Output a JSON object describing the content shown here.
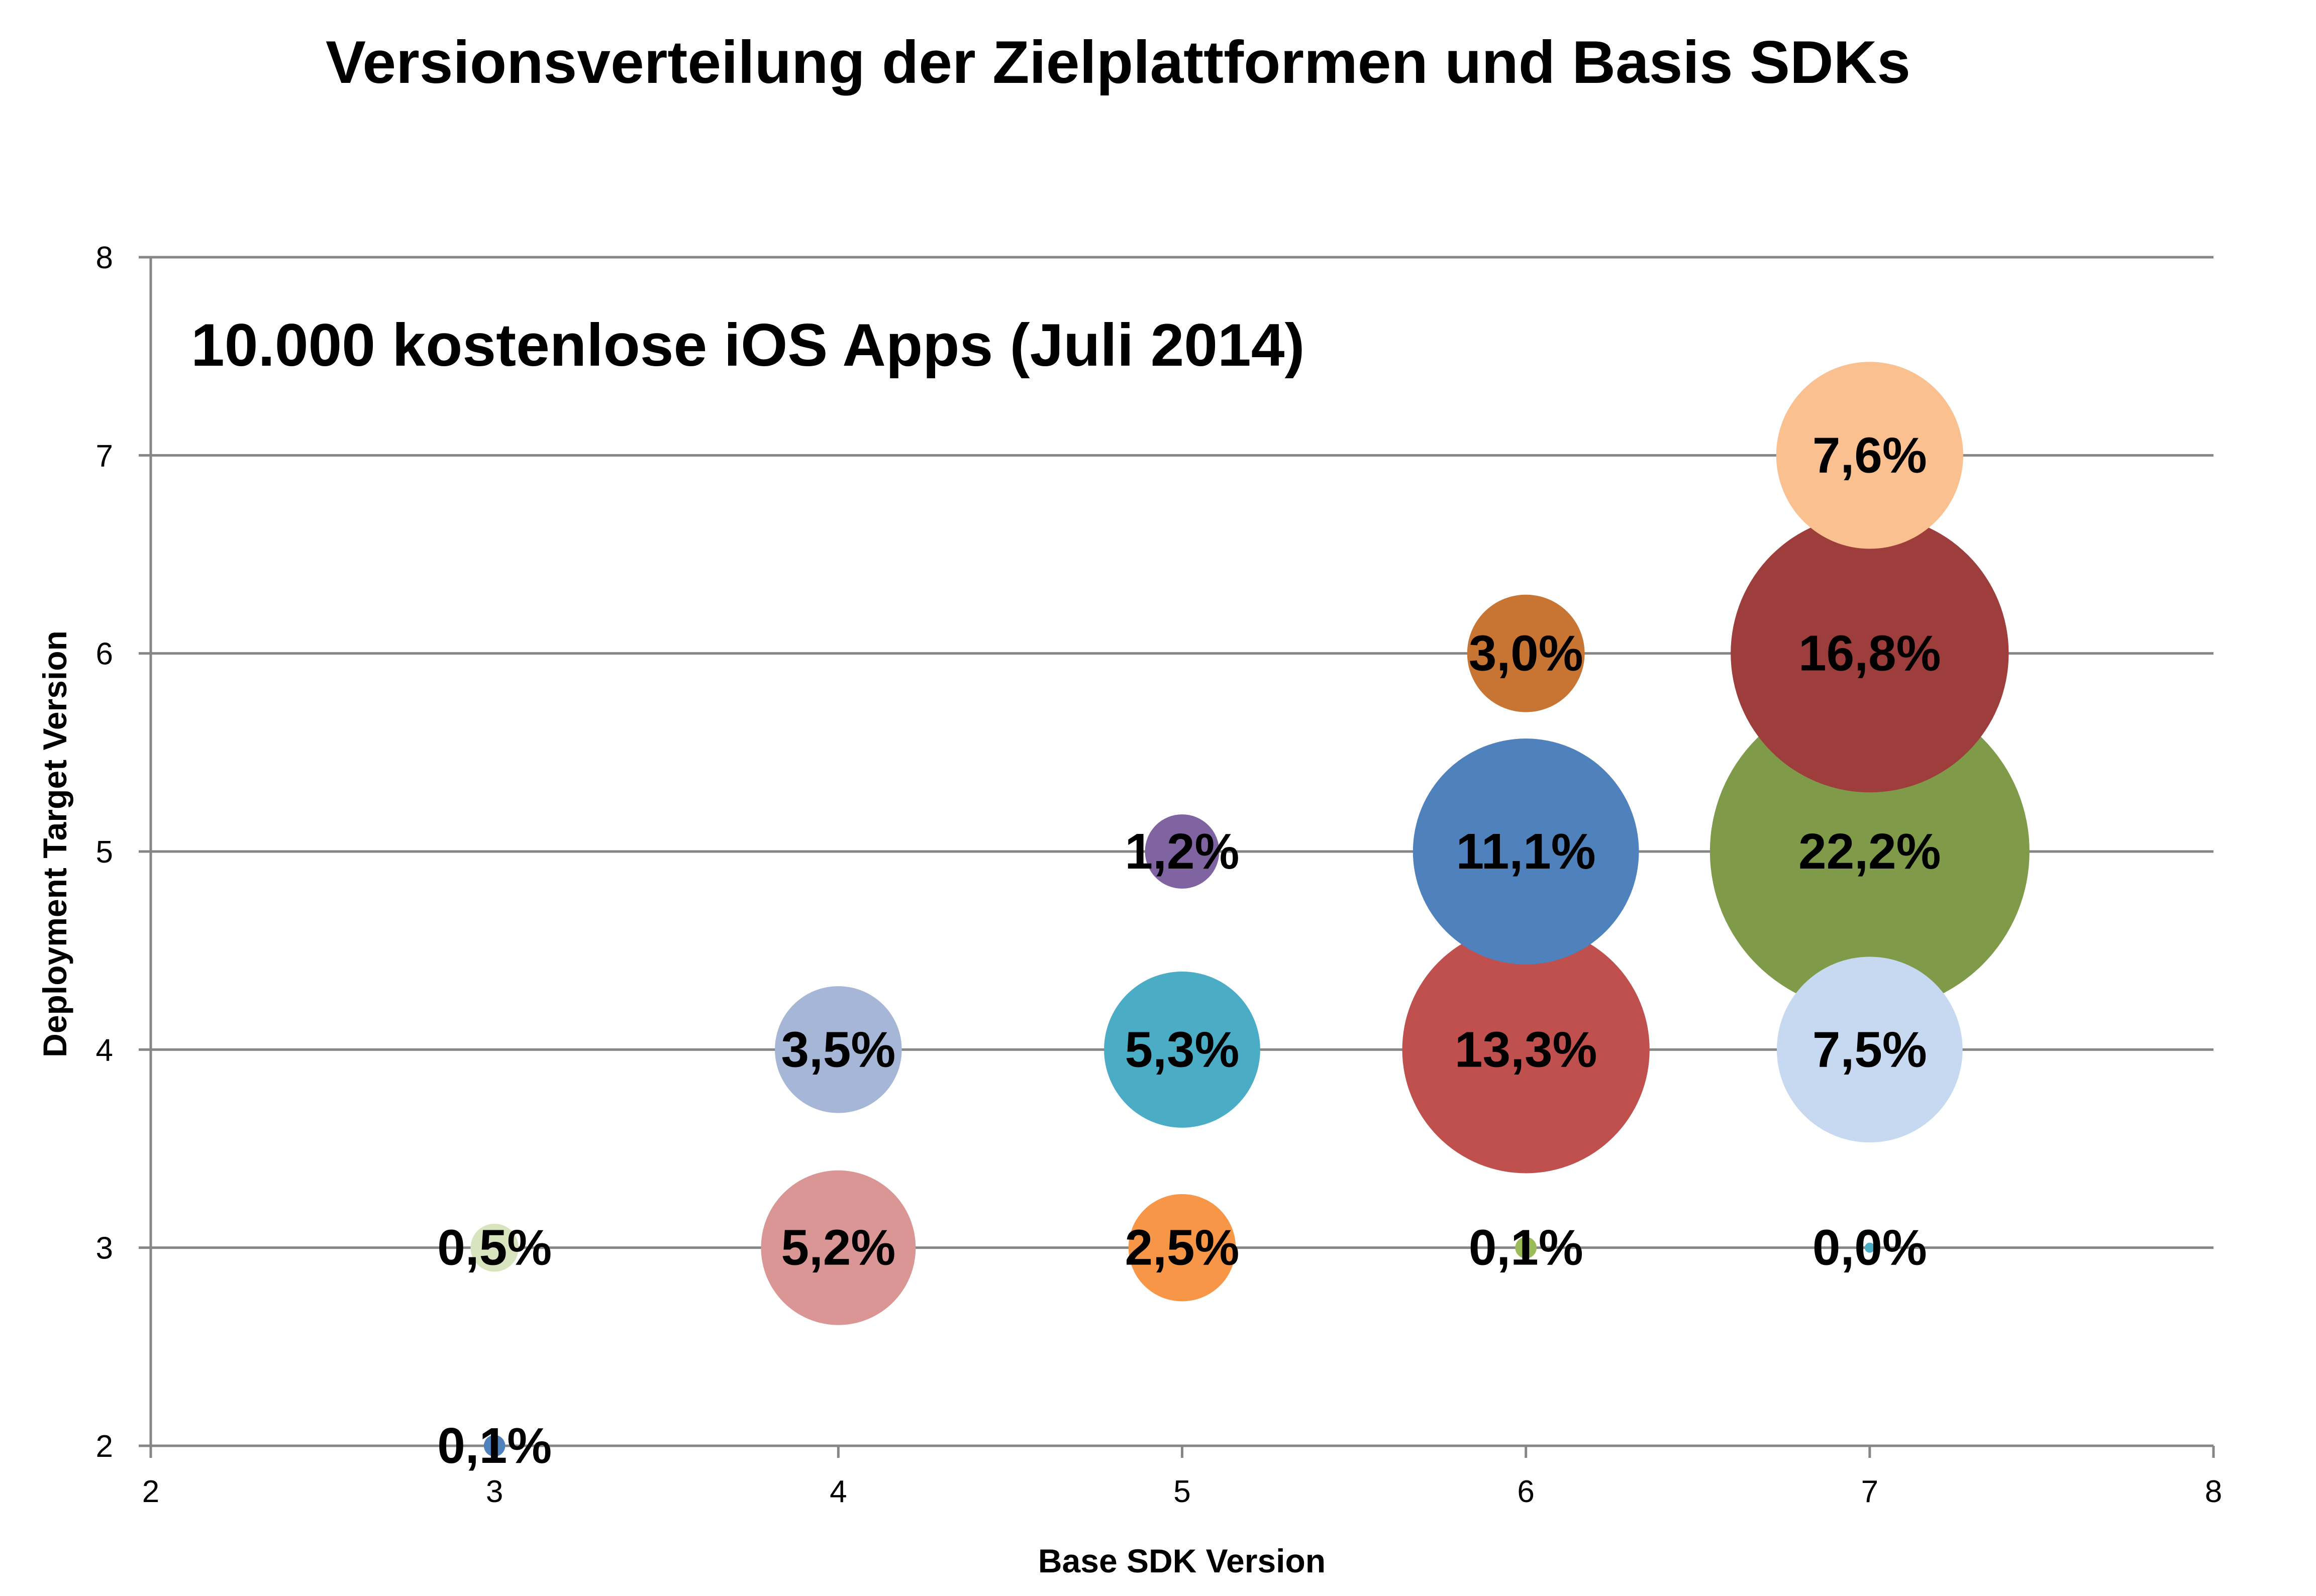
{
  "chart_data": {
    "type": "bubble",
    "title": "Versionsverteilung der Zielplattformen und Basis SDKs",
    "subtitle": "10.000 kostenlose iOS Apps (Juli 2014)",
    "xlabel": "Base SDK Version",
    "ylabel": "Deployment Target Version",
    "xlim": [
      2,
      8
    ],
    "ylim": [
      2,
      8
    ],
    "xticks": [
      "2",
      "3",
      "4",
      "5",
      "6",
      "7",
      "8"
    ],
    "yticks": [
      "2",
      "3",
      "4",
      "5",
      "6",
      "7",
      "8"
    ],
    "grid": "horizontal",
    "legend": "none",
    "points": [
      {
        "x": 3,
        "y": 2,
        "size": 0.1,
        "label": "0,1%",
        "color": "#4f81bd"
      },
      {
        "x": 3,
        "y": 3,
        "size": 0.5,
        "label": "0,5%",
        "color": "#d7e4bd"
      },
      {
        "x": 4,
        "y": 3,
        "size": 5.2,
        "label": "5,2%",
        "color": "#d99694"
      },
      {
        "x": 4,
        "y": 4,
        "size": 3.5,
        "label": "3,5%",
        "color": "#a6b6d6"
      },
      {
        "x": 5,
        "y": 3,
        "size": 2.5,
        "label": "2,5%",
        "color": "#f79646"
      },
      {
        "x": 5,
        "y": 4,
        "size": 5.3,
        "label": "5,3%",
        "color": "#4bacc6"
      },
      {
        "x": 5,
        "y": 5,
        "size": 1.2,
        "label": "1,2%",
        "color": "#8064a2"
      },
      {
        "x": 6,
        "y": 3,
        "size": 0.1,
        "label": "0,1%",
        "color": "#9bbb59"
      },
      {
        "x": 6,
        "y": 4,
        "size": 13.3,
        "label": "13,3%",
        "color": "#c0504d"
      },
      {
        "x": 6,
        "y": 5,
        "size": 11.1,
        "label": "11,1%",
        "color": "#4f81bd"
      },
      {
        "x": 6,
        "y": 6,
        "size": 3.0,
        "label": "3,0%",
        "color": "#c87533"
      },
      {
        "x": 7,
        "y": 3,
        "size": 0.0,
        "label": "0,0%",
        "color": "#4bacc6"
      },
      {
        "x": 7,
        "y": 4,
        "size": 7.5,
        "label": "7,5%",
        "color": "#c6d9f1"
      },
      {
        "x": 7,
        "y": 5,
        "size": 22.2,
        "label": "22,2%",
        "color": "#7f9a48"
      },
      {
        "x": 7,
        "y": 6,
        "size": 16.8,
        "label": "16,8%",
        "color": "#9d3e3c"
      },
      {
        "x": 7,
        "y": 7,
        "size": 7.6,
        "label": "7,6%",
        "color": "#fac090"
      }
    ]
  }
}
